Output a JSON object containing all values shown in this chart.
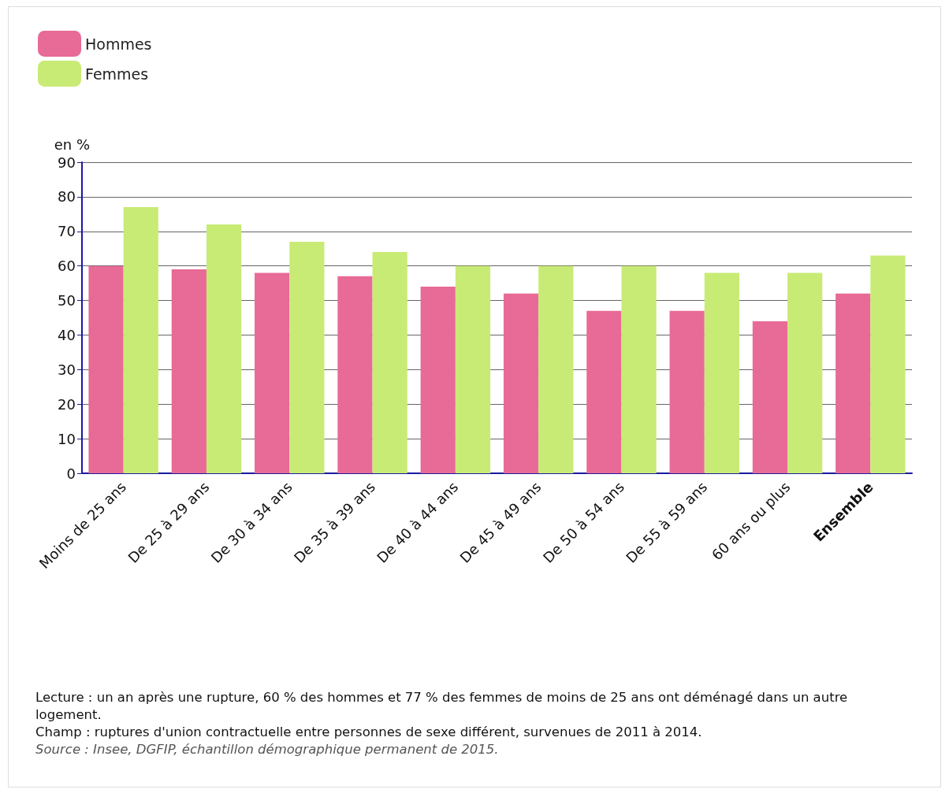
{
  "chart_data": {
    "type": "bar",
    "ylabel": "en %",
    "categories": [
      "Moins de 25 ans",
      "De 25 à 29 ans",
      "De 30 à 34 ans",
      "De 35 à 39 ans",
      "De 40 à 44 ans",
      "De 45 à 49 ans",
      "De 50 à 54 ans",
      "De 55 à 59 ans",
      "60 ans ou plus",
      "Ensemble"
    ],
    "series": [
      {
        "name": "Hommes",
        "color": "#e86a96",
        "values": [
          60,
          59,
          58,
          57,
          54,
          52,
          47,
          47,
          44,
          52
        ]
      },
      {
        "name": "Femmes",
        "color": "#c8eb75",
        "values": [
          77,
          72,
          67,
          64,
          60,
          60,
          60,
          58,
          58,
          63
        ]
      }
    ],
    "ylim": [
      0,
      90
    ],
    "yticks": [
      0,
      10,
      20,
      30,
      40,
      50,
      60,
      70,
      80,
      90
    ],
    "grid": "y",
    "legend": "top left",
    "annotations": [
      "Lecture : un an après une rupture, 60 % des hommes et 77 % des femmes de moins de 25 ans ont déménagé dans un autre logement.",
      "Champ : ruptures d'union contractuelle entre personnes de sexe différent, survenues de 2011 à 2014.",
      "Source : Insee, DGFIP, échantillon démographique permanent de 2015."
    ]
  }
}
